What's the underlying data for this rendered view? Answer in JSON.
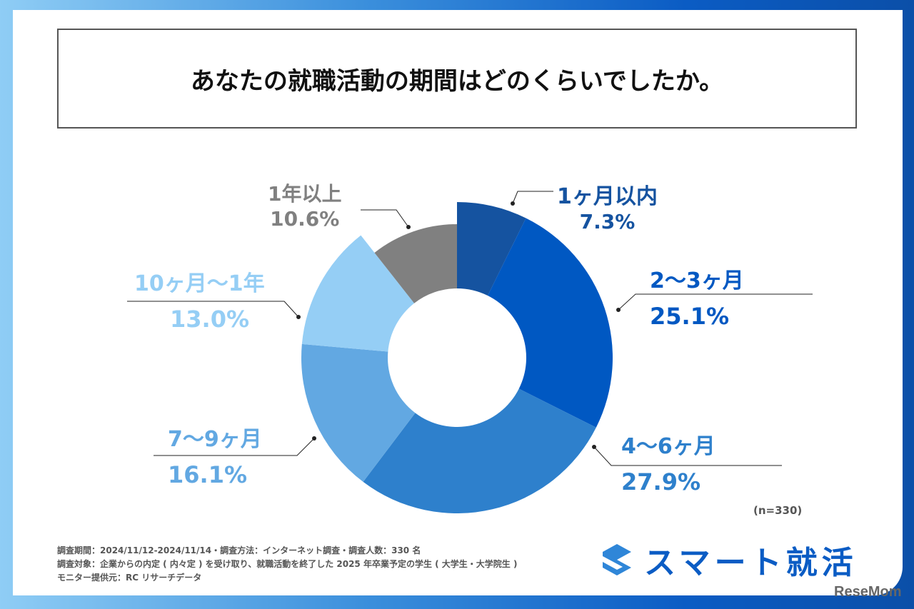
{
  "title": "あなたの就職活動の期間はどのくらいでしたか。",
  "chart_data": {
    "type": "pie",
    "donut": true,
    "categories": [
      "1ヶ月以内",
      "2〜3ヶ月",
      "4〜6ヶ月",
      "7〜9ヶ月",
      "10ヶ月〜1年",
      "1年以上"
    ],
    "values": [
      7.3,
      25.1,
      27.9,
      16.1,
      13.0,
      10.6
    ],
    "labels": [
      "7.3%",
      "25.1%",
      "27.9%",
      "16.1%",
      "13.0%",
      "10.6%"
    ],
    "colors": [
      "#1553a0",
      "#0058c2",
      "#2e80cc",
      "#62a8e2",
      "#95cef5",
      "#808080"
    ],
    "sample": "(n=330)"
  },
  "notes": [
    "調査期間：2024/11/12-2024/11/14・調査方法：インターネット調査・調査人数：330 名",
    "調査対象：企業からの内定 ( 内々定 ) を受け取り、就職活動を終了した 2025 年卒業予定の学生 ( 大学生・大学院生 )",
    "モニター提供元：RC リサーチデータ"
  ],
  "brand": "スマート就活",
  "watermark": "ReseMom"
}
